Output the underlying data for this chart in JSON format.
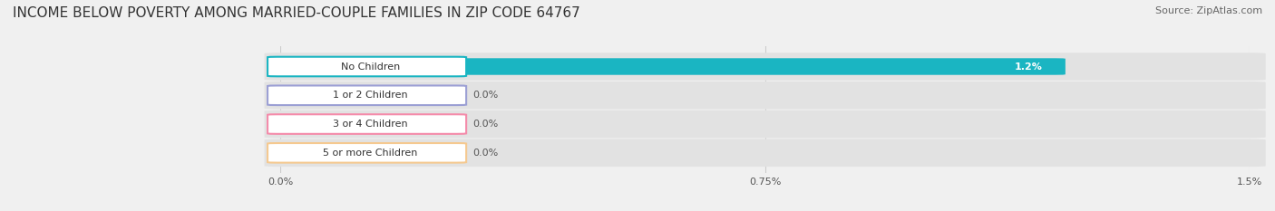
{
  "title": "INCOME BELOW POVERTY AMONG MARRIED-COUPLE FAMILIES IN ZIP CODE 64767",
  "source": "Source: ZipAtlas.com",
  "categories": [
    "No Children",
    "1 or 2 Children",
    "3 or 4 Children",
    "5 or more Children"
  ],
  "values": [
    1.2,
    0.0,
    0.0,
    0.0
  ],
  "bar_colors": [
    "#1ab5c2",
    "#9b9fd4",
    "#f48baa",
    "#f5c990"
  ],
  "xlim": [
    0,
    1.5
  ],
  "xticks": [
    0.0,
    0.75,
    1.5
  ],
  "xtick_labels": [
    "0.0%",
    "0.75%",
    "1.5%"
  ],
  "background_color": "#f0f0f0",
  "bar_bg_color": "#e2e2e2",
  "title_fontsize": 11,
  "source_fontsize": 8,
  "label_fontsize": 8,
  "value_fontsize": 8
}
